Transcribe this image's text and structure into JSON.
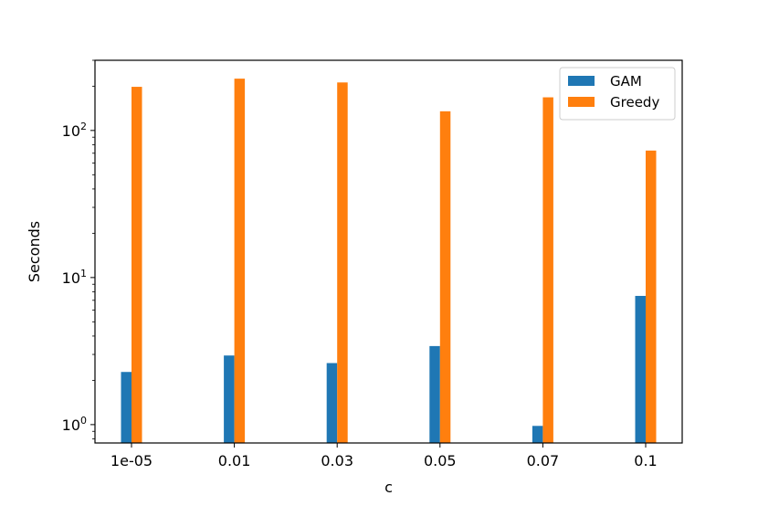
{
  "chart_data": {
    "type": "bar",
    "categories": [
      "1e-05",
      "0.01",
      "0.03",
      "0.05",
      "0.07",
      "0.1"
    ],
    "series": [
      {
        "name": "GAM",
        "values": [
          2.28,
          2.95,
          2.62,
          3.42,
          0.98,
          7.5
        ],
        "color": "#1f77b4"
      },
      {
        "name": "Greedy",
        "values": [
          198,
          225,
          212,
          135,
          168,
          73
        ],
        "color": "#ff7f0e"
      }
    ],
    "xlabel": "c",
    "ylabel": "Seconds",
    "yscale": "log",
    "ylim": [
      0.75,
      300
    ],
    "y_ticks": [
      {
        "value": 1,
        "base": "10",
        "exp": "0"
      },
      {
        "value": 10,
        "base": "10",
        "exp": "1"
      },
      {
        "value": 100,
        "base": "10",
        "exp": "2"
      }
    ],
    "legend": {
      "position": "top-right"
    },
    "grid": false
  }
}
